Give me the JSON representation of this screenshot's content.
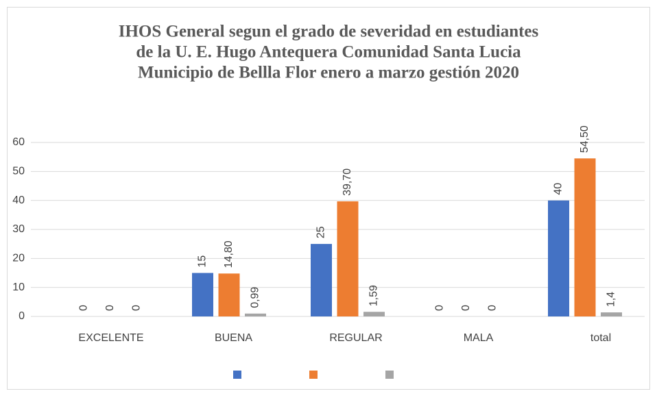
{
  "chart_data": {
    "type": "bar",
    "title": [
      "IHOS General segun el grado de severidad en estudiantes",
      "de la U. E. Hugo Antequera Comunidad Santa Lucia",
      "Municipio de Bellla Flor enero a marzo gestión 2020"
    ],
    "categories": [
      "EXCELENTE",
      "BUENA",
      "REGULAR",
      "MALA",
      "total"
    ],
    "series": [
      {
        "color": "#4472c4",
        "values": [
          0,
          15,
          25,
          0,
          40
        ]
      },
      {
        "color": "#ed7d31",
        "values": [
          0,
          14.8,
          39.7,
          0,
          54.5
        ],
        "value_labels": [
          "0",
          "14,80",
          "39,70",
          "0",
          "54,50"
        ]
      },
      {
        "color": "#a5a5a5",
        "values": [
          0,
          0.99,
          1.59,
          0,
          1.4
        ],
        "value_labels": [
          "0",
          "0,99",
          "1,59",
          "0",
          "1,4"
        ]
      }
    ],
    "ylim": [
      0,
      60
    ],
    "yticks": [
      0,
      10,
      20,
      30,
      40,
      50,
      60
    ],
    "grid": true,
    "legend": "bottom"
  }
}
